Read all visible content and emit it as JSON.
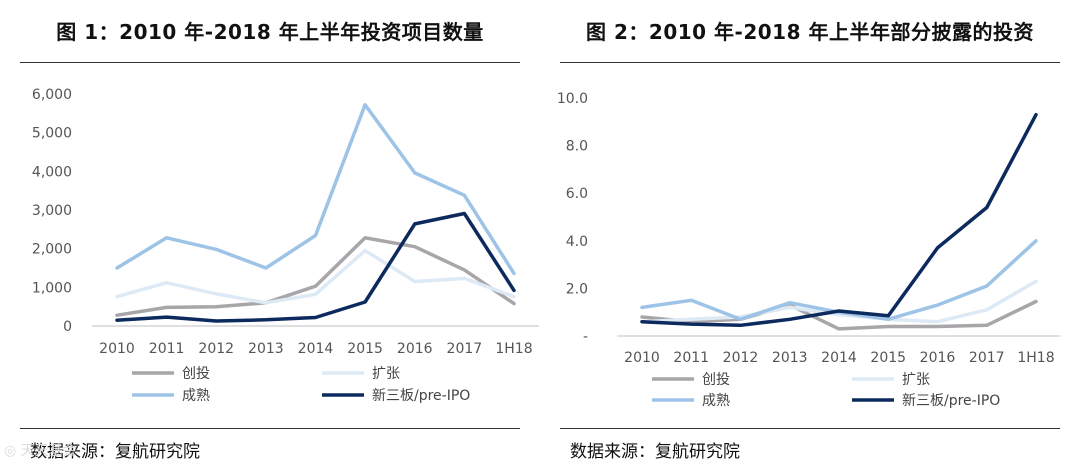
{
  "chart_data": [
    {
      "type": "line",
      "title": "图 1：2010 年-2018 年上半年投资项目数量",
      "categories": [
        "2010",
        "2011",
        "2012",
        "2013",
        "2014",
        "2015",
        "2016",
        "2017",
        "1H18"
      ],
      "ylim": [
        0,
        6000
      ],
      "yticks": [
        "0",
        "1,000",
        "2,000",
        "3,000",
        "4,000",
        "5,000",
        "6,000"
      ],
      "ytick_values": [
        0,
        1000,
        2000,
        3000,
        4000,
        5000,
        6000
      ],
      "series": [
        {
          "name": "创投",
          "color": "#a8a6a8",
          "values": [
            280,
            480,
            500,
            600,
            1030,
            2280,
            2050,
            1450,
            580
          ]
        },
        {
          "name": "扩张",
          "color": "#dde9f5",
          "values": [
            760,
            1120,
            830,
            600,
            820,
            1950,
            1150,
            1230,
            760
          ]
        },
        {
          "name": "成熟",
          "color": "#9dc3e6",
          "values": [
            1500,
            2280,
            1980,
            1500,
            2340,
            5720,
            3960,
            3380,
            1360
          ]
        },
        {
          "name": "新三板/pre-IPO",
          "color": "#0c2a5e",
          "values": [
            150,
            230,
            130,
            160,
            220,
            620,
            2640,
            2910,
            920
          ]
        }
      ],
      "source": "数据来源：复航研究院"
    },
    {
      "type": "line",
      "title": "图 2：2010 年-2018 年上半年部分披露的投资",
      "categories": [
        "2010",
        "2011",
        "2012",
        "2013",
        "2014",
        "2015",
        "2016",
        "2017",
        "1H18"
      ],
      "ylim": [
        0,
        10
      ],
      "yticks": [
        "-",
        "2.0",
        "4.0",
        "6.0",
        "8.0",
        "10.0"
      ],
      "ytick_values": [
        0,
        2,
        4,
        6,
        8,
        10
      ],
      "series": [
        {
          "name": "创投",
          "color": "#a8a6a8",
          "values": [
            0.8,
            0.6,
            0.7,
            1.3,
            0.3,
            0.4,
            0.4,
            0.45,
            1.45
          ]
        },
        {
          "name": "扩张",
          "color": "#dde9f5",
          "values": [
            0.6,
            0.7,
            0.8,
            1.2,
            0.9,
            0.7,
            0.6,
            1.1,
            2.3
          ]
        },
        {
          "name": "成熟",
          "color": "#9dc3e6",
          "values": [
            1.2,
            1.5,
            0.7,
            1.4,
            1.0,
            0.7,
            1.3,
            2.1,
            4.0
          ]
        },
        {
          "name": "新三板/pre-IPO",
          "color": "#0c2a5e",
          "values": [
            0.6,
            0.5,
            0.45,
            0.7,
            1.05,
            0.85,
            3.7,
            5.4,
            9.3
          ]
        }
      ],
      "source": "数据来源：复航研究院"
    }
  ],
  "watermark": "◎ 天天基金"
}
